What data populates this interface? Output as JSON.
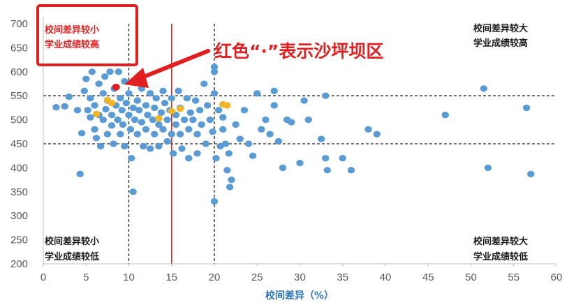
{
  "chart_data": {
    "type": "scatter",
    "xlabel": "校间差异（%）",
    "ylabel": "",
    "xlim": [
      0,
      60
    ],
    "ylim": [
      200,
      700
    ],
    "xticks": [
      0,
      5,
      10,
      15,
      20,
      25,
      30,
      35,
      40,
      45,
      50,
      55,
      60
    ],
    "yticks": [
      200,
      250,
      300,
      350,
      400,
      450,
      500,
      550,
      600,
      650,
      700
    ],
    "grid": false,
    "reference_lines": {
      "vertical_dashed": [
        10,
        20
      ],
      "horizontal_dashed": [
        450,
        550
      ],
      "vertical_red": 15
    },
    "quadrant_labels": {
      "top_left": [
        "校间差异较小",
        "学业成绩较高"
      ],
      "top_right": [
        "校间差异较大",
        "学业成绩较高"
      ],
      "bottom_left": [
        "校间差异较小",
        "学业成绩较低"
      ],
      "bottom_right": [
        "校间差异较大",
        "学业成绩较低"
      ]
    },
    "annotation": "红色“·”表示沙坪坝区",
    "colors": {
      "blue": "#5b9bd5",
      "orange": "#f0b429",
      "red": "#e02020"
    },
    "series": [
      {
        "color": "blue",
        "points": [
          [
            1.5,
            526
          ],
          [
            2.5,
            528
          ],
          [
            3,
            548
          ],
          [
            4,
            520
          ],
          [
            4.3,
            387
          ],
          [
            4.5,
            472
          ],
          [
            4.8,
            560
          ],
          [
            5,
            585
          ],
          [
            5.2,
            520
          ],
          [
            5.5,
            505
          ],
          [
            5.5,
            545
          ],
          [
            5.7,
            600
          ],
          [
            6,
            480
          ],
          [
            6,
            530
          ],
          [
            6.2,
            462
          ],
          [
            6.5,
            575
          ],
          [
            6.5,
            510
          ],
          [
            6.7,
            445
          ],
          [
            7,
            500
          ],
          [
            7,
            555
          ],
          [
            7.2,
            590
          ],
          [
            7.3,
            522
          ],
          [
            7.5,
            470
          ],
          [
            7.5,
            540
          ],
          [
            7.8,
            600
          ],
          [
            8,
            510
          ],
          [
            8,
            488
          ],
          [
            8.2,
            450
          ],
          [
            8.3,
            565
          ],
          [
            8.5,
            530
          ],
          [
            8.7,
            500
          ],
          [
            8.8,
            600
          ],
          [
            9,
            470
          ],
          [
            9,
            545
          ],
          [
            9.2,
            520
          ],
          [
            9.3,
            490
          ],
          [
            9.5,
            580
          ],
          [
            9.5,
            445
          ],
          [
            9.7,
            535
          ],
          [
            10,
            510
          ],
          [
            10,
            555
          ],
          [
            10.2,
            480
          ],
          [
            10.3,
            420
          ],
          [
            10.5,
            525
          ],
          [
            10.5,
            350
          ],
          [
            10.7,
            500
          ],
          [
            11,
            540
          ],
          [
            11,
            470
          ],
          [
            11.2,
            520
          ],
          [
            11.5,
            495
          ],
          [
            11.5,
            565
          ],
          [
            11.7,
            445
          ],
          [
            12,
            530
          ],
          [
            12,
            480
          ],
          [
            12.2,
            510
          ],
          [
            12.5,
            440
          ],
          [
            12.5,
            555
          ],
          [
            12.8,
            500
          ],
          [
            13,
            525
          ],
          [
            13,
            470
          ],
          [
            13.2,
            545
          ],
          [
            13.5,
            490
          ],
          [
            13.5,
            445
          ],
          [
            13.8,
            515
          ],
          [
            14,
            560
          ],
          [
            14,
            480
          ],
          [
            14.2,
            535
          ],
          [
            14.5,
            500
          ],
          [
            14.5,
            455
          ],
          [
            14.8,
            520
          ],
          [
            15,
            545
          ],
          [
            15,
            470
          ],
          [
            15.2,
            430
          ],
          [
            15.5,
            510
          ],
          [
            15.5,
            490
          ],
          [
            15.8,
            560
          ],
          [
            16,
            470
          ],
          [
            16,
            525
          ],
          [
            16.2,
            440
          ],
          [
            16.5,
            500
          ],
          [
            16.8,
            545
          ],
          [
            17,
            420
          ],
          [
            17,
            480
          ],
          [
            17.2,
            515
          ],
          [
            17.5,
            500
          ],
          [
            17.8,
            540
          ],
          [
            18,
            470
          ],
          [
            18,
            430
          ],
          [
            18.3,
            520
          ],
          [
            18.5,
            490
          ],
          [
            18.8,
            575
          ],
          [
            19,
            450
          ],
          [
            19.2,
            530
          ],
          [
            19.5,
            500
          ],
          [
            19.8,
            475
          ],
          [
            20,
            610
          ],
          [
            20,
            600
          ],
          [
            20,
            555
          ],
          [
            20,
            330
          ],
          [
            20.2,
            420
          ],
          [
            20.5,
            520
          ],
          [
            20.7,
            445
          ],
          [
            21,
            480
          ],
          [
            21,
            505
          ],
          [
            21.3,
            450
          ],
          [
            21.5,
            395
          ],
          [
            21.7,
            430
          ],
          [
            21.8,
            360
          ],
          [
            22,
            375
          ],
          [
            22.5,
            490
          ],
          [
            23,
            460
          ],
          [
            23.5,
            520
          ],
          [
            24,
            450
          ],
          [
            24.5,
            425
          ],
          [
            25,
            555
          ],
          [
            25.5,
            480
          ],
          [
            26,
            500
          ],
          [
            26.5,
            470
          ],
          [
            27,
            560
          ],
          [
            27,
            530
          ],
          [
            27.5,
            455
          ],
          [
            28,
            400
          ],
          [
            28.5,
            500
          ],
          [
            29,
            495
          ],
          [
            30,
            410
          ],
          [
            30.5,
            540
          ],
          [
            31,
            500
          ],
          [
            32.5,
            460
          ],
          [
            33,
            550
          ],
          [
            33,
            420
          ],
          [
            33.2,
            395
          ],
          [
            35,
            420
          ],
          [
            36,
            395
          ],
          [
            38,
            480
          ],
          [
            39,
            470
          ],
          [
            47,
            510
          ],
          [
            51.5,
            565
          ],
          [
            52,
            400
          ],
          [
            56.5,
            525
          ],
          [
            57,
            387
          ]
        ]
      },
      {
        "color": "orange",
        "points": [
          [
            6.2,
            512
          ],
          [
            7.5,
            541
          ],
          [
            8,
            535
          ],
          [
            13.5,
            503
          ],
          [
            15,
            518
          ],
          [
            16,
            523
          ],
          [
            21,
            532
          ],
          [
            21.5,
            530
          ]
        ]
      },
      {
        "color": "red",
        "name": "沙坪坝区",
        "points": [
          [
            8.5,
            568
          ]
        ]
      }
    ]
  }
}
